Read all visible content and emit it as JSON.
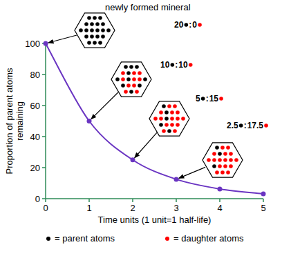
{
  "chart_data": {
    "type": "line",
    "x_label": "Time units (1 unit=1 half-life)",
    "y_label_lines": [
      "Proportion of parent atoms",
      "remaining"
    ],
    "x": [
      0,
      1,
      2,
      3,
      4,
      5
    ],
    "series": [
      {
        "name": "parent atoms remaining",
        "color": "#6a35c2",
        "marker": "circle",
        "line_style": "solid",
        "values": [
          100,
          50,
          25,
          12.5,
          6.25,
          3.125
        ]
      }
    ],
    "xlim": [
      0,
      5
    ],
    "ylim": [
      0,
      100
    ],
    "xticks": [
      0,
      1,
      2,
      3,
      4,
      5
    ],
    "yticks": [
      0,
      20,
      40,
      60,
      80,
      100
    ],
    "grid": false,
    "separator": ":",
    "annotations": [
      {
        "label": "newly formed mineral",
        "parent": 20,
        "daughter": 0
      },
      {
        "parent": 10,
        "daughter": 10
      },
      {
        "parent": 5,
        "daughter": 15
      },
      {
        "parent": 2.5,
        "daughter": 17.5
      }
    ],
    "dot_legend": [
      {
        "label": "= parent atoms",
        "color": "#000000"
      },
      {
        "label": "= daughter atoms",
        "color": "#ff0000"
      }
    ]
  }
}
